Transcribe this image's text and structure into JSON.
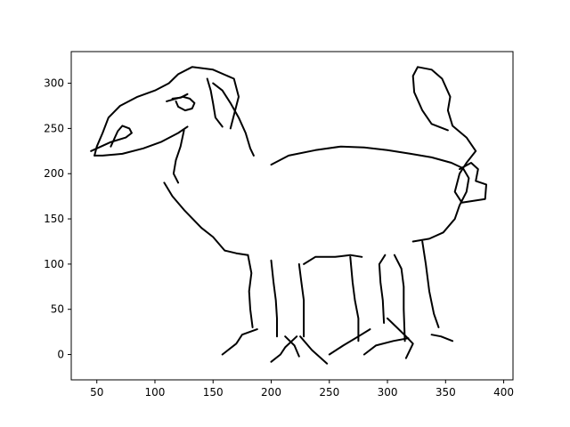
{
  "chart_data": {
    "type": "line",
    "title": "",
    "xlabel": "",
    "ylabel": "",
    "xlim": [
      28,
      408
    ],
    "ylim": [
      -28,
      335
    ],
    "xticks": [
      50,
      100,
      150,
      200,
      250,
      300,
      350,
      400
    ],
    "yticks": [
      0,
      50,
      100,
      150,
      200,
      250,
      300
    ],
    "grid": false,
    "line_color": "#000000",
    "strokes": [
      {
        "name": "nose",
        "points": [
          [
            45,
            225
          ],
          [
            62,
            235
          ],
          [
            75,
            240
          ],
          [
            80,
            245
          ],
          [
            78,
            250
          ],
          [
            72,
            253
          ],
          [
            68,
            247
          ],
          [
            62,
            230
          ]
        ]
      },
      {
        "name": "head-top",
        "points": [
          [
            48,
            220
          ],
          [
            50,
            230
          ],
          [
            55,
            245
          ],
          [
            60,
            262
          ],
          [
            70,
            275
          ],
          [
            85,
            285
          ],
          [
            100,
            292
          ],
          [
            112,
            300
          ],
          [
            120,
            310
          ],
          [
            132,
            318
          ],
          [
            150,
            315
          ],
          [
            168,
            305
          ],
          [
            172,
            285
          ],
          [
            168,
            265
          ],
          [
            165,
            250
          ]
        ]
      },
      {
        "name": "mouth",
        "points": [
          [
            48,
            220
          ],
          [
            55,
            220
          ],
          [
            72,
            222
          ],
          [
            90,
            228
          ],
          [
            105,
            235
          ],
          [
            120,
            245
          ],
          [
            128,
            252
          ]
        ]
      },
      {
        "name": "jaw-line",
        "points": [
          [
            125,
            248
          ],
          [
            122,
            230
          ],
          [
            118,
            215
          ],
          [
            116,
            200
          ],
          [
            120,
            190
          ]
        ]
      },
      {
        "name": "cheek",
        "points": [
          [
            145,
            305
          ],
          [
            148,
            292
          ],
          [
            150,
            278
          ],
          [
            152,
            262
          ],
          [
            158,
            252
          ]
        ]
      },
      {
        "name": "ear-back",
        "points": [
          [
            150,
            300
          ],
          [
            158,
            292
          ],
          [
            165,
            278
          ],
          [
            172,
            262
          ],
          [
            178,
            245
          ],
          [
            182,
            228
          ],
          [
            185,
            220
          ]
        ]
      },
      {
        "name": "eye",
        "points": [
          [
            110,
            280
          ],
          [
            118,
            283
          ],
          [
            124,
            285
          ],
          [
            130,
            283
          ],
          [
            134,
            278
          ],
          [
            132,
            272
          ],
          [
            126,
            270
          ],
          [
            120,
            274
          ],
          [
            118,
            280
          ]
        ]
      },
      {
        "name": "brow",
        "points": [
          [
            115,
            283
          ],
          [
            122,
            284
          ],
          [
            128,
            288
          ]
        ]
      },
      {
        "name": "neck-front",
        "points": [
          [
            108,
            190
          ],
          [
            115,
            175
          ],
          [
            125,
            160
          ],
          [
            140,
            140
          ],
          [
            150,
            130
          ],
          [
            160,
            115
          ],
          [
            170,
            112
          ],
          [
            180,
            110
          ]
        ]
      },
      {
        "name": "back",
        "points": [
          [
            200,
            210
          ],
          [
            215,
            220
          ],
          [
            238,
            226
          ],
          [
            260,
            230
          ],
          [
            280,
            229
          ],
          [
            300,
            226
          ],
          [
            320,
            222
          ],
          [
            338,
            218
          ],
          [
            355,
            212
          ],
          [
            365,
            206
          ],
          [
            370,
            195
          ],
          [
            368,
            180
          ],
          [
            362,
            165
          ],
          [
            358,
            150
          ],
          [
            348,
            135
          ],
          [
            336,
            128
          ],
          [
            322,
            125
          ]
        ]
      },
      {
        "name": "tail",
        "points": [
          [
            362,
            205
          ],
          [
            372,
            212
          ],
          [
            378,
            205
          ],
          [
            376,
            192
          ],
          [
            385,
            188
          ],
          [
            384,
            172
          ],
          [
            364,
            168
          ],
          [
            358,
            180
          ],
          [
            362,
            200
          ],
          [
            368,
            212
          ],
          [
            376,
            225
          ],
          [
            368,
            240
          ],
          [
            356,
            253
          ],
          [
            352,
            270
          ],
          [
            354,
            285
          ],
          [
            347,
            305
          ],
          [
            338,
            315
          ],
          [
            326,
            318
          ],
          [
            322,
            308
          ],
          [
            323,
            290
          ],
          [
            330,
            270
          ],
          [
            338,
            255
          ],
          [
            352,
            248
          ]
        ]
      },
      {
        "name": "chest",
        "points": [
          [
            180,
            110
          ],
          [
            183,
            90
          ],
          [
            181,
            70
          ],
          [
            182,
            50
          ],
          [
            184,
            30
          ]
        ]
      },
      {
        "name": "foreleg-1",
        "points": [
          [
            200,
            104
          ],
          [
            202,
            80
          ],
          [
            204,
            60
          ],
          [
            205,
            40
          ],
          [
            205,
            20
          ]
        ]
      },
      {
        "name": "foreleg-2",
        "points": [
          [
            224,
            100
          ],
          [
            226,
            80
          ],
          [
            228,
            60
          ],
          [
            228,
            40
          ],
          [
            228,
            20
          ]
        ]
      },
      {
        "name": "belly",
        "points": [
          [
            228,
            100
          ],
          [
            238,
            108
          ],
          [
            255,
            108
          ],
          [
            268,
            110
          ],
          [
            278,
            108
          ]
        ]
      },
      {
        "name": "hindleg-1",
        "points": [
          [
            268,
            108
          ],
          [
            270,
            80
          ],
          [
            272,
            60
          ],
          [
            275,
            40
          ],
          [
            275,
            15
          ]
        ]
      },
      {
        "name": "hindleg-2",
        "points": [
          [
            298,
            110
          ],
          [
            293,
            100
          ],
          [
            294,
            80
          ],
          [
            296,
            60
          ],
          [
            297,
            35
          ]
        ]
      },
      {
        "name": "hindleg-3",
        "points": [
          [
            306,
            110
          ],
          [
            312,
            95
          ],
          [
            314,
            75
          ],
          [
            314,
            50
          ],
          [
            315,
            15
          ]
        ]
      },
      {
        "name": "hindleg-4",
        "points": [
          [
            330,
            125
          ],
          [
            333,
            100
          ],
          [
            336,
            70
          ],
          [
            340,
            45
          ],
          [
            344,
            30
          ]
        ]
      },
      {
        "name": "hoof-1",
        "points": [
          [
            158,
            0
          ],
          [
            170,
            12
          ],
          [
            175,
            22
          ],
          [
            188,
            28
          ]
        ]
      },
      {
        "name": "hoof-2",
        "points": [
          [
            200,
            -8
          ],
          [
            208,
            0
          ],
          [
            212,
            8
          ],
          [
            222,
            20
          ]
        ]
      },
      {
        "name": "hoof-3",
        "points": [
          [
            212,
            20
          ],
          [
            220,
            10
          ],
          [
            224,
            -2
          ]
        ]
      },
      {
        "name": "hoof-4",
        "points": [
          [
            225,
            20
          ],
          [
            235,
            5
          ],
          [
            248,
            -10
          ]
        ]
      },
      {
        "name": "hoof-5",
        "points": [
          [
            250,
            0
          ],
          [
            262,
            10
          ],
          [
            275,
            20
          ],
          [
            285,
            28
          ]
        ]
      },
      {
        "name": "hoof-6",
        "points": [
          [
            280,
            0
          ],
          [
            290,
            10
          ],
          [
            305,
            15
          ],
          [
            318,
            18
          ]
        ]
      },
      {
        "name": "hoof-7",
        "points": [
          [
            300,
            40
          ],
          [
            308,
            30
          ],
          [
            316,
            20
          ],
          [
            322,
            12
          ],
          [
            316,
            -4
          ]
        ]
      },
      {
        "name": "hoof-8",
        "points": [
          [
            338,
            22
          ],
          [
            346,
            20
          ],
          [
            356,
            15
          ]
        ]
      }
    ]
  }
}
